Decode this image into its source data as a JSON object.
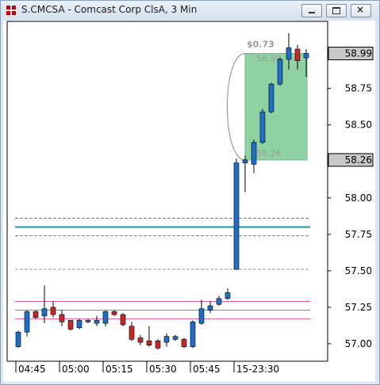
{
  "chart_data": {
    "type": "candlestick",
    "title": "S.CMCSA - Comcast Corp ClsA, 3 Min",
    "categories": [
      "04:45",
      null,
      null,
      null,
      null,
      "05:00",
      null,
      null,
      null,
      null,
      "05:15",
      null,
      null,
      null,
      null,
      "05:30",
      null,
      null,
      null,
      null,
      "05:45",
      null,
      null,
      null,
      null,
      "15-23:30",
      null,
      null,
      null,
      null,
      null,
      null,
      null,
      null
    ],
    "open": [
      56.98,
      57.08,
      57.22,
      57.19,
      57.25,
      57.2,
      57.16,
      57.11,
      57.15,
      57.14,
      57.14,
      57.22,
      57.2,
      57.12,
      57.04,
      57.02,
      57.02,
      57.01,
      57.03,
      57.03,
      56.98,
      57.14,
      57.23,
      57.27,
      57.31,
      57.51,
      58.24,
      58.23,
      58.38,
      58.59,
      58.78,
      58.95,
      59.02,
      58.96
    ],
    "high": [
      57.09,
      57.23,
      57.23,
      57.4,
      57.29,
      57.23,
      57.16,
      57.17,
      57.17,
      57.19,
      57.23,
      57.23,
      57.21,
      57.15,
      57.06,
      57.12,
      57.03,
      57.07,
      57.06,
      57.04,
      57.16,
      57.3,
      57.29,
      57.33,
      57.38,
      58.27,
      58.29,
      58.4,
      58.61,
      58.79,
      58.96,
      59.13,
      59.05,
      59.02
    ],
    "low": [
      56.97,
      57.05,
      57.17,
      57.14,
      57.18,
      57.12,
      57.09,
      57.1,
      57.14,
      57.12,
      57.12,
      57.19,
      57.12,
      57.02,
      56.99,
      56.98,
      56.96,
      56.98,
      57.02,
      56.97,
      56.97,
      57.13,
      57.21,
      57.26,
      57.3,
      57.51,
      58.04,
      58.17,
      58.37,
      58.58,
      58.77,
      58.88,
      58.88,
      58.83
    ],
    "close": [
      57.08,
      57.22,
      57.18,
      57.24,
      57.2,
      57.15,
      57.1,
      57.16,
      57.16,
      57.16,
      57.22,
      57.2,
      57.13,
      57.03,
      57.01,
      56.99,
      56.97,
      57.05,
      57.05,
      56.98,
      57.15,
      57.24,
      57.26,
      57.31,
      57.35,
      58.24,
      58.26,
      58.38,
      58.59,
      58.78,
      58.95,
      59.03,
      58.94,
      58.99
    ],
    "up_color": "#1f6fc8",
    "down_color": "#c62828",
    "ylim": [
      56.88,
      59.21
    ],
    "yticks": [
      {
        "value": 57,
        "label": "57.00"
      },
      57.25,
      {
        "value": 57.5,
        "label": "57.50"
      },
      57.75,
      {
        "value": 58,
        "label": "58.00"
      },
      {
        "value": 58.5,
        "label": "58.50"
      },
      58.75
    ],
    "price_markers": [
      58.99,
      58.26
    ],
    "hlines": [
      {
        "value": 57.86,
        "color": "#2eaa55",
        "style": "dashed"
      },
      {
        "value": 57.8,
        "color": "#1a9aa0",
        "style": "solid"
      },
      {
        "value": 57.74,
        "color": "#2eaa55",
        "style": "dashed"
      },
      {
        "value": 57.51,
        "color": "#999999",
        "style": "dashed"
      },
      {
        "value": 57.29,
        "color": "#e05a9a",
        "style": "solid"
      },
      {
        "value": 57.23,
        "color": "#e05a9a",
        "style": "solid"
      },
      {
        "value": 57.17,
        "color": "#e05a9a",
        "style": "solid"
      }
    ],
    "measure": {
      "low": 58.26,
      "high": 58.99,
      "change_label": "$0.73",
      "color": "#8fd3a5"
    }
  }
}
